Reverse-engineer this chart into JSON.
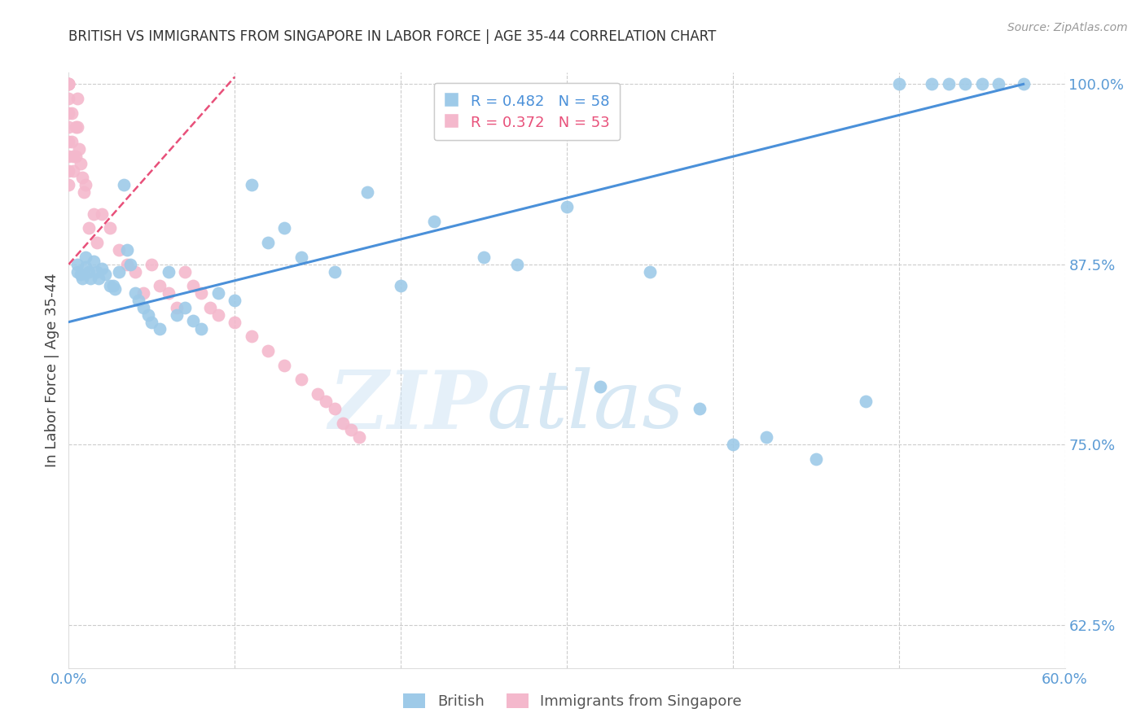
{
  "title": "BRITISH VS IMMIGRANTS FROM SINGAPORE IN LABOR FORCE | AGE 35-44 CORRELATION CHART",
  "source": "Source: ZipAtlas.com",
  "ylabel": "In Labor Force | Age 35-44",
  "xlim": [
    0.0,
    0.6
  ],
  "ylim": [
    0.595,
    1.008
  ],
  "ytick_positions": [
    0.625,
    0.75,
    0.875,
    1.0
  ],
  "ytick_labels": [
    "62.5%",
    "75.0%",
    "87.5%",
    "100.0%"
  ],
  "legend_blue_r": "R = 0.482",
  "legend_blue_n": "N = 58",
  "legend_pink_r": "R = 0.372",
  "legend_pink_n": "N = 53",
  "watermark_zip": "ZIP",
  "watermark_atlas": "atlas",
  "bg_color": "#ffffff",
  "grid_color": "#cccccc",
  "blue_color": "#9ecae8",
  "pink_color": "#f4b8cc",
  "blue_line_color": "#4a90d9",
  "pink_line_color": "#e8507a",
  "axis_tick_color": "#5b9bd5",
  "title_color": "#333333",
  "blue_trend_x0": 0.0,
  "blue_trend_x1": 0.575,
  "blue_trend_y0": 0.835,
  "blue_trend_y1": 1.0,
  "pink_trend_x0": 0.0,
  "pink_trend_x1": 0.1,
  "pink_trend_y0": 0.875,
  "pink_trend_y1": 1.005,
  "british_x": [
    0.005,
    0.005,
    0.007,
    0.008,
    0.01,
    0.01,
    0.012,
    0.013,
    0.015,
    0.017,
    0.018,
    0.02,
    0.022,
    0.025,
    0.027,
    0.028,
    0.03,
    0.033,
    0.035,
    0.037,
    0.04,
    0.042,
    0.045,
    0.048,
    0.05,
    0.055,
    0.06,
    0.065,
    0.07,
    0.075,
    0.08,
    0.09,
    0.1,
    0.11,
    0.12,
    0.13,
    0.14,
    0.16,
    0.18,
    0.2,
    0.22,
    0.25,
    0.27,
    0.3,
    0.32,
    0.35,
    0.38,
    0.4,
    0.42,
    0.45,
    0.48,
    0.5,
    0.52,
    0.53,
    0.54,
    0.55,
    0.56,
    0.575
  ],
  "british_y": [
    0.875,
    0.87,
    0.868,
    0.865,
    0.88,
    0.873,
    0.87,
    0.865,
    0.877,
    0.87,
    0.865,
    0.872,
    0.868,
    0.86,
    0.86,
    0.858,
    0.87,
    0.93,
    0.885,
    0.875,
    0.855,
    0.85,
    0.845,
    0.84,
    0.835,
    0.83,
    0.87,
    0.84,
    0.845,
    0.836,
    0.83,
    0.855,
    0.85,
    0.93,
    0.89,
    0.9,
    0.88,
    0.87,
    0.925,
    0.86,
    0.905,
    0.88,
    0.875,
    0.915,
    0.79,
    0.87,
    0.775,
    0.75,
    0.755,
    0.74,
    0.78,
    1.0,
    1.0,
    1.0,
    1.0,
    1.0,
    1.0,
    1.0
  ],
  "singapore_x": [
    0.0,
    0.0,
    0.0,
    0.0,
    0.0,
    0.0,
    0.0,
    0.0,
    0.0,
    0.0,
    0.0,
    0.002,
    0.002,
    0.003,
    0.003,
    0.004,
    0.004,
    0.005,
    0.005,
    0.006,
    0.007,
    0.008,
    0.009,
    0.01,
    0.012,
    0.015,
    0.017,
    0.02,
    0.025,
    0.03,
    0.035,
    0.04,
    0.045,
    0.05,
    0.055,
    0.06,
    0.065,
    0.07,
    0.075,
    0.08,
    0.085,
    0.09,
    0.1,
    0.11,
    0.12,
    0.13,
    0.14,
    0.15,
    0.155,
    0.16,
    0.165,
    0.17,
    0.175
  ],
  "singapore_y": [
    1.0,
    1.0,
    1.0,
    1.0,
    0.99,
    0.98,
    0.97,
    0.96,
    0.95,
    0.94,
    0.93,
    0.98,
    0.96,
    0.95,
    0.94,
    0.97,
    0.95,
    0.99,
    0.97,
    0.955,
    0.945,
    0.935,
    0.925,
    0.93,
    0.9,
    0.91,
    0.89,
    0.91,
    0.9,
    0.885,
    0.875,
    0.87,
    0.855,
    0.875,
    0.86,
    0.855,
    0.845,
    0.87,
    0.86,
    0.855,
    0.845,
    0.84,
    0.835,
    0.825,
    0.815,
    0.805,
    0.795,
    0.785,
    0.78,
    0.775,
    0.765,
    0.76,
    0.755
  ]
}
